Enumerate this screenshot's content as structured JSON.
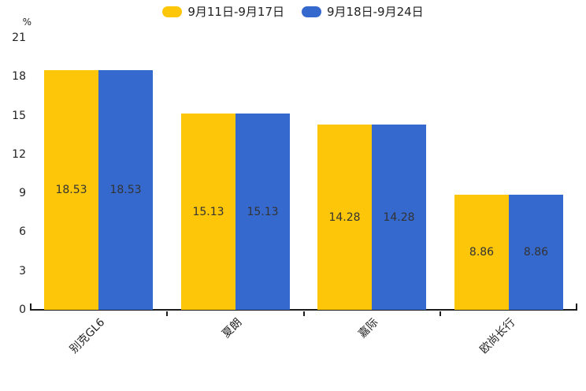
{
  "chart_data": {
    "type": "bar",
    "categories": [
      "别克GL6",
      "夏朗",
      "嘉际",
      "欧尚长行"
    ],
    "series": [
      {
        "name": "9月11日-9月17日",
        "color": "#fdc609",
        "values": [
          18.53,
          15.13,
          14.28,
          8.86
        ]
      },
      {
        "name": "9月18日-9月24日",
        "color": "#3569cd",
        "values": [
          18.53,
          15.13,
          14.28,
          8.86
        ]
      }
    ],
    "title": "",
    "xlabel": "",
    "ylabel": "%",
    "ylim": [
      0,
      21
    ],
    "yticks": [
      "0",
      "3",
      "6",
      "9",
      "12",
      "15",
      "18",
      "21"
    ],
    "grid": false,
    "legend_position": "top",
    "value_labels": "inside-center",
    "value_label_color": "#333333",
    "axis_color": "#1c1c1c",
    "background_color": "#ffffff"
  }
}
